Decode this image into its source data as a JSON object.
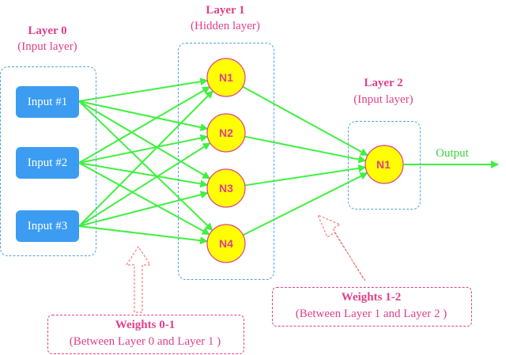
{
  "colors": {
    "pink": "#e0408a",
    "input_blue": "#3b9cf2",
    "neuron_fill": "#ffff00",
    "neuron_stroke": "#e0408a",
    "connection_green": "#40f040",
    "group_border": "#4da6d6",
    "hollow_arrow": "#f08080"
  },
  "layer0": {
    "title": "Layer 0",
    "subtitle": "(Input layer)",
    "inputs": [
      "Input #1",
      "Input #2",
      "Input #3"
    ]
  },
  "layer1": {
    "title": "Layer 1",
    "subtitle": "(Hidden layer)",
    "neurons": [
      "N1",
      "N2",
      "N3",
      "N4"
    ]
  },
  "layer2": {
    "title": "Layer 2",
    "subtitle": "(Input layer)",
    "neurons": [
      "N1"
    ]
  },
  "output_label": "Output",
  "weights01": {
    "title": "Weights 0-1",
    "subtitle": "(Between Layer 0 and Layer 1 )"
  },
  "weights12": {
    "title": "Weights 1-2",
    "subtitle": "(Between Layer 1 and Layer 2 )"
  }
}
